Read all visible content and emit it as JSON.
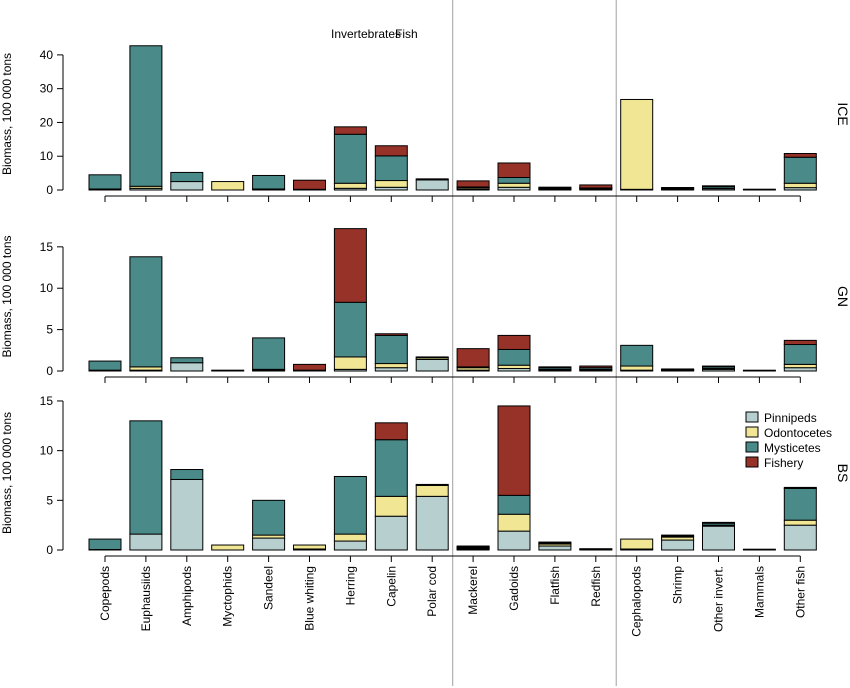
{
  "chart_data": {
    "type": "bar",
    "stacked": true,
    "categories": [
      "Copepods",
      "Euphausiids",
      "Amphipods",
      "Myctophids",
      "Sandeel",
      "Blue whiting",
      "Herring",
      "Capelin",
      "Polar cod",
      "Mackerel",
      "Gadoids",
      "Flatfish",
      "Redfish",
      "Cephalopods",
      "Shrimp",
      "Other invert.",
      "Mammals",
      "Other fish"
    ],
    "group_labels": [
      "Invertebrates",
      "Fish"
    ],
    "ylabel": "Biomass, 100 000 tons",
    "legend": [
      "Pinnipeds",
      "Odontocetes",
      "Mysticetes",
      "Fishery"
    ],
    "legend_position": "right of bottom panel",
    "colors": {
      "Pinnipeds": "#b7cfcf",
      "Odontocetes": "#f0e694",
      "Mysticetes": "#4a8a88",
      "Fishery": "#963228"
    },
    "panels": [
      {
        "name": "ICE",
        "ylim": [
          0,
          45
        ],
        "yticks": [
          0,
          10,
          20,
          30,
          40
        ],
        "series": [
          {
            "name": "Pinnipeds",
            "values": [
              0.3,
              0.5,
              2.5,
              0,
              0.3,
              0,
              0.5,
              0.8,
              3.0,
              0.3,
              0.8,
              0.2,
              0.3,
              0.2,
              0.2,
              0.4,
              0.1,
              0.7
            ]
          },
          {
            "name": "Odontocetes",
            "values": [
              0,
              0.6,
              0,
              2.5,
              0,
              0,
              1.5,
              2.0,
              0,
              0.4,
              1.2,
              0.1,
              0.1,
              26.6,
              0.1,
              0.1,
              0,
              1.3
            ]
          },
          {
            "name": "Mysticetes",
            "values": [
              4.2,
              41.6,
              2.7,
              0,
              4.0,
              0.2,
              14.5,
              7.3,
              0,
              0.2,
              1.7,
              0.3,
              0.2,
              0,
              0.2,
              0.5,
              0,
              7.7
            ]
          },
          {
            "name": "Fishery",
            "values": [
              0,
              0,
              0,
              0,
              0,
              2.7,
              2.2,
              3.0,
              0.3,
              1.8,
              4.3,
              0.2,
              0.9,
              0,
              0.1,
              0.2,
              0,
              1.1
            ]
          }
        ]
      },
      {
        "name": "GN",
        "ylim": [
          0,
          18
        ],
        "yticks": [
          0,
          5,
          10,
          15
        ],
        "series": [
          {
            "name": "Pinnipeds",
            "values": [
              0.1,
              0.1,
              1.0,
              0,
              0.1,
              0,
              0.2,
              0.4,
              1.4,
              0.1,
              0.3,
              0.1,
              0.1,
              0.1,
              0.05,
              0.2,
              0.05,
              0.4
            ]
          },
          {
            "name": "Odontocetes",
            "values": [
              0,
              0.4,
              0,
              0.1,
              0.1,
              0,
              1.5,
              0.5,
              0.2,
              0.3,
              0.4,
              0.1,
              0.1,
              0.5,
              0.05,
              0.1,
              0,
              0.4
            ]
          },
          {
            "name": "Mysticetes",
            "values": [
              1.1,
              13.3,
              0.6,
              0,
              3.8,
              0.1,
              6.6,
              3.4,
              0,
              0.1,
              1.9,
              0.2,
              0.2,
              2.5,
              0.05,
              0.2,
              0,
              2.4
            ]
          },
          {
            "name": "Fishery",
            "values": [
              0,
              0,
              0,
              0,
              0,
              0.7,
              8.9,
              0.2,
              0.1,
              2.2,
              1.7,
              0.1,
              0.2,
              0,
              0.05,
              0.05,
              0,
              0.5
            ]
          }
        ]
      },
      {
        "name": "BS",
        "ylim": [
          0,
          15.5
        ],
        "yticks": [
          0,
          5,
          10,
          15
        ],
        "series": [
          {
            "name": "Pinnipeds",
            "values": [
              0.05,
              1.6,
              7.1,
              0,
              1.2,
              0.1,
              0.9,
              3.4,
              5.4,
              0.1,
              1.9,
              0.4,
              0.05,
              0.1,
              1.0,
              2.4,
              0.05,
              2.5
            ]
          },
          {
            "name": "Odontocetes",
            "values": [
              0,
              0,
              0,
              0.5,
              0.3,
              0.4,
              0.7,
              2.0,
              1.1,
              0.1,
              1.7,
              0.2,
              0.05,
              1.0,
              0.3,
              0.1,
              0,
              0.5
            ]
          },
          {
            "name": "Mysticetes",
            "values": [
              1.05,
              11.4,
              1.0,
              0,
              3.5,
              0,
              5.8,
              5.7,
              0,
              0.1,
              1.9,
              0.1,
              0,
              0,
              0.1,
              0.2,
              0,
              3.2
            ]
          },
          {
            "name": "Fishery",
            "values": [
              0,
              0,
              0,
              0,
              0,
              0,
              0,
              1.7,
              0.1,
              0.1,
              9.0,
              0.1,
              0,
              0,
              0.1,
              0.05,
              0,
              0.1
            ]
          }
        ]
      }
    ]
  }
}
